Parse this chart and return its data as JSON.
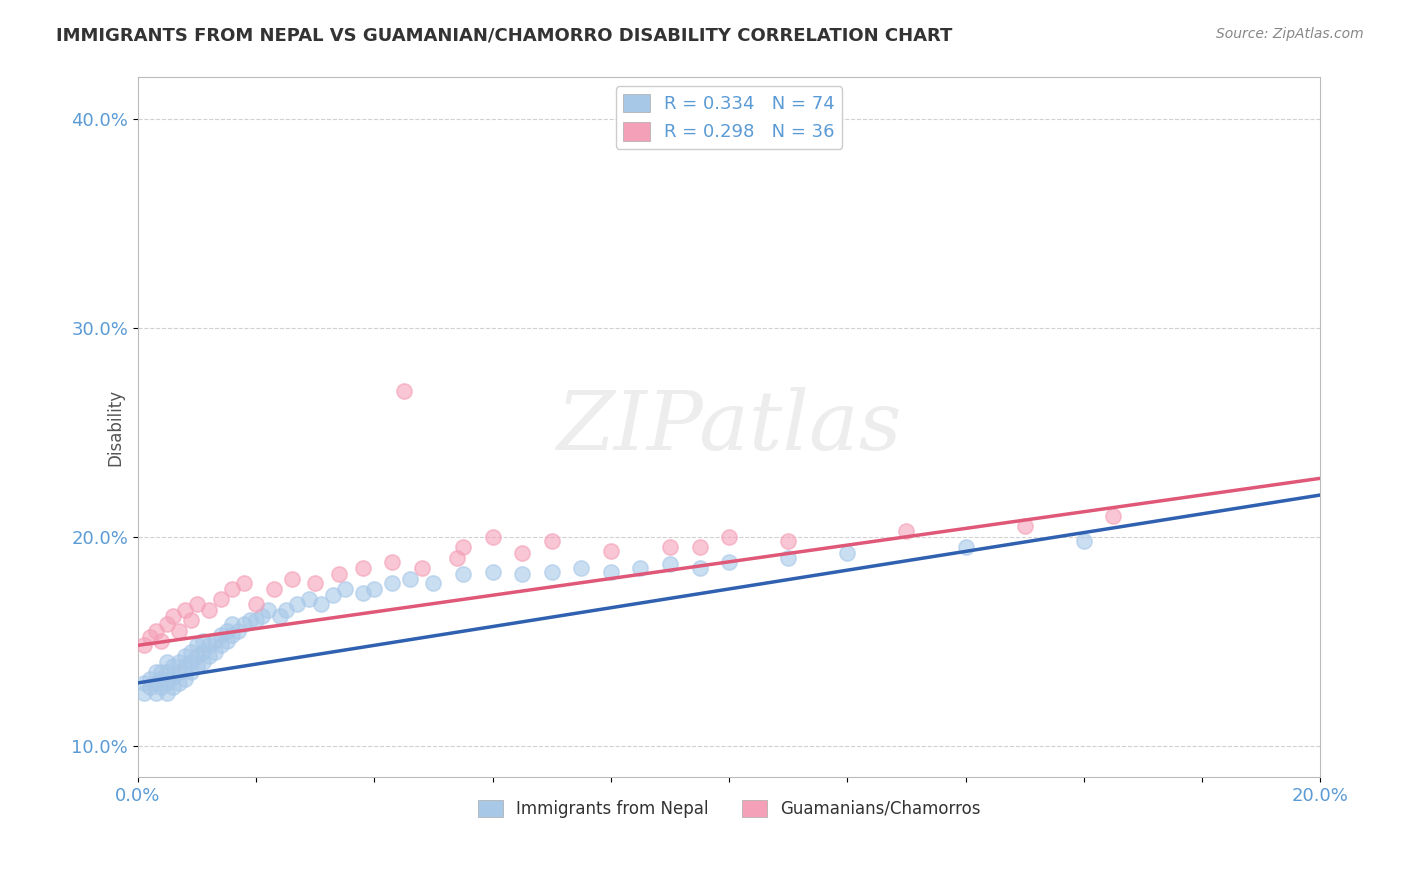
{
  "title": "IMMIGRANTS FROM NEPAL VS GUAMANIAN/CHAMORRO DISABILITY CORRELATION CHART",
  "source": "Source: ZipAtlas.com",
  "ylabel": "Disability",
  "xlim": [
    0.0,
    0.2
  ],
  "ylim": [
    0.085,
    0.42
  ],
  "xticks": [
    0.0,
    0.02,
    0.04,
    0.06,
    0.08,
    0.1,
    0.12,
    0.14,
    0.16,
    0.18,
    0.2
  ],
  "yticks": [
    0.1,
    0.2,
    0.3,
    0.4
  ],
  "series1_color": "#a8c8e8",
  "series2_color": "#f4a0b8",
  "trend1_color": "#3060b0",
  "trend2_color": "#e05878",
  "R1": 0.334,
  "N1": 74,
  "R2": 0.298,
  "N2": 36,
  "legend_label1": "Immigrants from Nepal",
  "legend_label2": "Guamanians/Chamorros",
  "watermark": "ZIPatlas",
  "title_color": "#333333",
  "axis_color": "#5b9bd5",
  "background_color": "#ffffff",
  "plot_bg_color": "#ffffff",
  "grid_color": "#cccccc",
  "trend1_intercept": 0.13,
  "trend1_slope": 0.45,
  "trend2_intercept": 0.148,
  "trend2_slope": 0.4,
  "series1_x": [
    0.001,
    0.001,
    0.002,
    0.002,
    0.003,
    0.003,
    0.003,
    0.004,
    0.004,
    0.004,
    0.005,
    0.005,
    0.005,
    0.005,
    0.006,
    0.006,
    0.006,
    0.007,
    0.007,
    0.007,
    0.008,
    0.008,
    0.008,
    0.009,
    0.009,
    0.009,
    0.01,
    0.01,
    0.01,
    0.011,
    0.011,
    0.011,
    0.012,
    0.012,
    0.013,
    0.013,
    0.014,
    0.014,
    0.015,
    0.015,
    0.016,
    0.016,
    0.017,
    0.018,
    0.019,
    0.02,
    0.021,
    0.022,
    0.024,
    0.025,
    0.027,
    0.029,
    0.031,
    0.033,
    0.035,
    0.038,
    0.04,
    0.043,
    0.046,
    0.05,
    0.055,
    0.06,
    0.065,
    0.07,
    0.075,
    0.08,
    0.085,
    0.09,
    0.095,
    0.1,
    0.11,
    0.12,
    0.14,
    0.16
  ],
  "series1_y": [
    0.13,
    0.125,
    0.128,
    0.132,
    0.125,
    0.13,
    0.135,
    0.132,
    0.128,
    0.135,
    0.13,
    0.125,
    0.135,
    0.14,
    0.128,
    0.133,
    0.138,
    0.13,
    0.135,
    0.14,
    0.132,
    0.138,
    0.143,
    0.135,
    0.14,
    0.145,
    0.138,
    0.143,
    0.148,
    0.14,
    0.145,
    0.15,
    0.143,
    0.148,
    0.145,
    0.15,
    0.148,
    0.153,
    0.15,
    0.155,
    0.153,
    0.158,
    0.155,
    0.158,
    0.16,
    0.16,
    0.162,
    0.165,
    0.162,
    0.165,
    0.168,
    0.17,
    0.168,
    0.172,
    0.175,
    0.173,
    0.175,
    0.178,
    0.18,
    0.178,
    0.182,
    0.183,
    0.182,
    0.183,
    0.185,
    0.183,
    0.185,
    0.187,
    0.185,
    0.188,
    0.19,
    0.192,
    0.195,
    0.198
  ],
  "series2_x": [
    0.001,
    0.002,
    0.003,
    0.004,
    0.005,
    0.006,
    0.007,
    0.008,
    0.009,
    0.01,
    0.012,
    0.014,
    0.016,
    0.018,
    0.02,
    0.023,
    0.026,
    0.03,
    0.034,
    0.038,
    0.043,
    0.048,
    0.054,
    0.045,
    0.055,
    0.06,
    0.065,
    0.07,
    0.08,
    0.09,
    0.095,
    0.1,
    0.11,
    0.13,
    0.15,
    0.165
  ],
  "series2_y": [
    0.148,
    0.152,
    0.155,
    0.15,
    0.158,
    0.162,
    0.155,
    0.165,
    0.16,
    0.168,
    0.165,
    0.17,
    0.175,
    0.178,
    0.168,
    0.175,
    0.18,
    0.178,
    0.182,
    0.185,
    0.188,
    0.185,
    0.19,
    0.27,
    0.195,
    0.2,
    0.192,
    0.198,
    0.193,
    0.195,
    0.195,
    0.2,
    0.198,
    0.203,
    0.205,
    0.21
  ]
}
